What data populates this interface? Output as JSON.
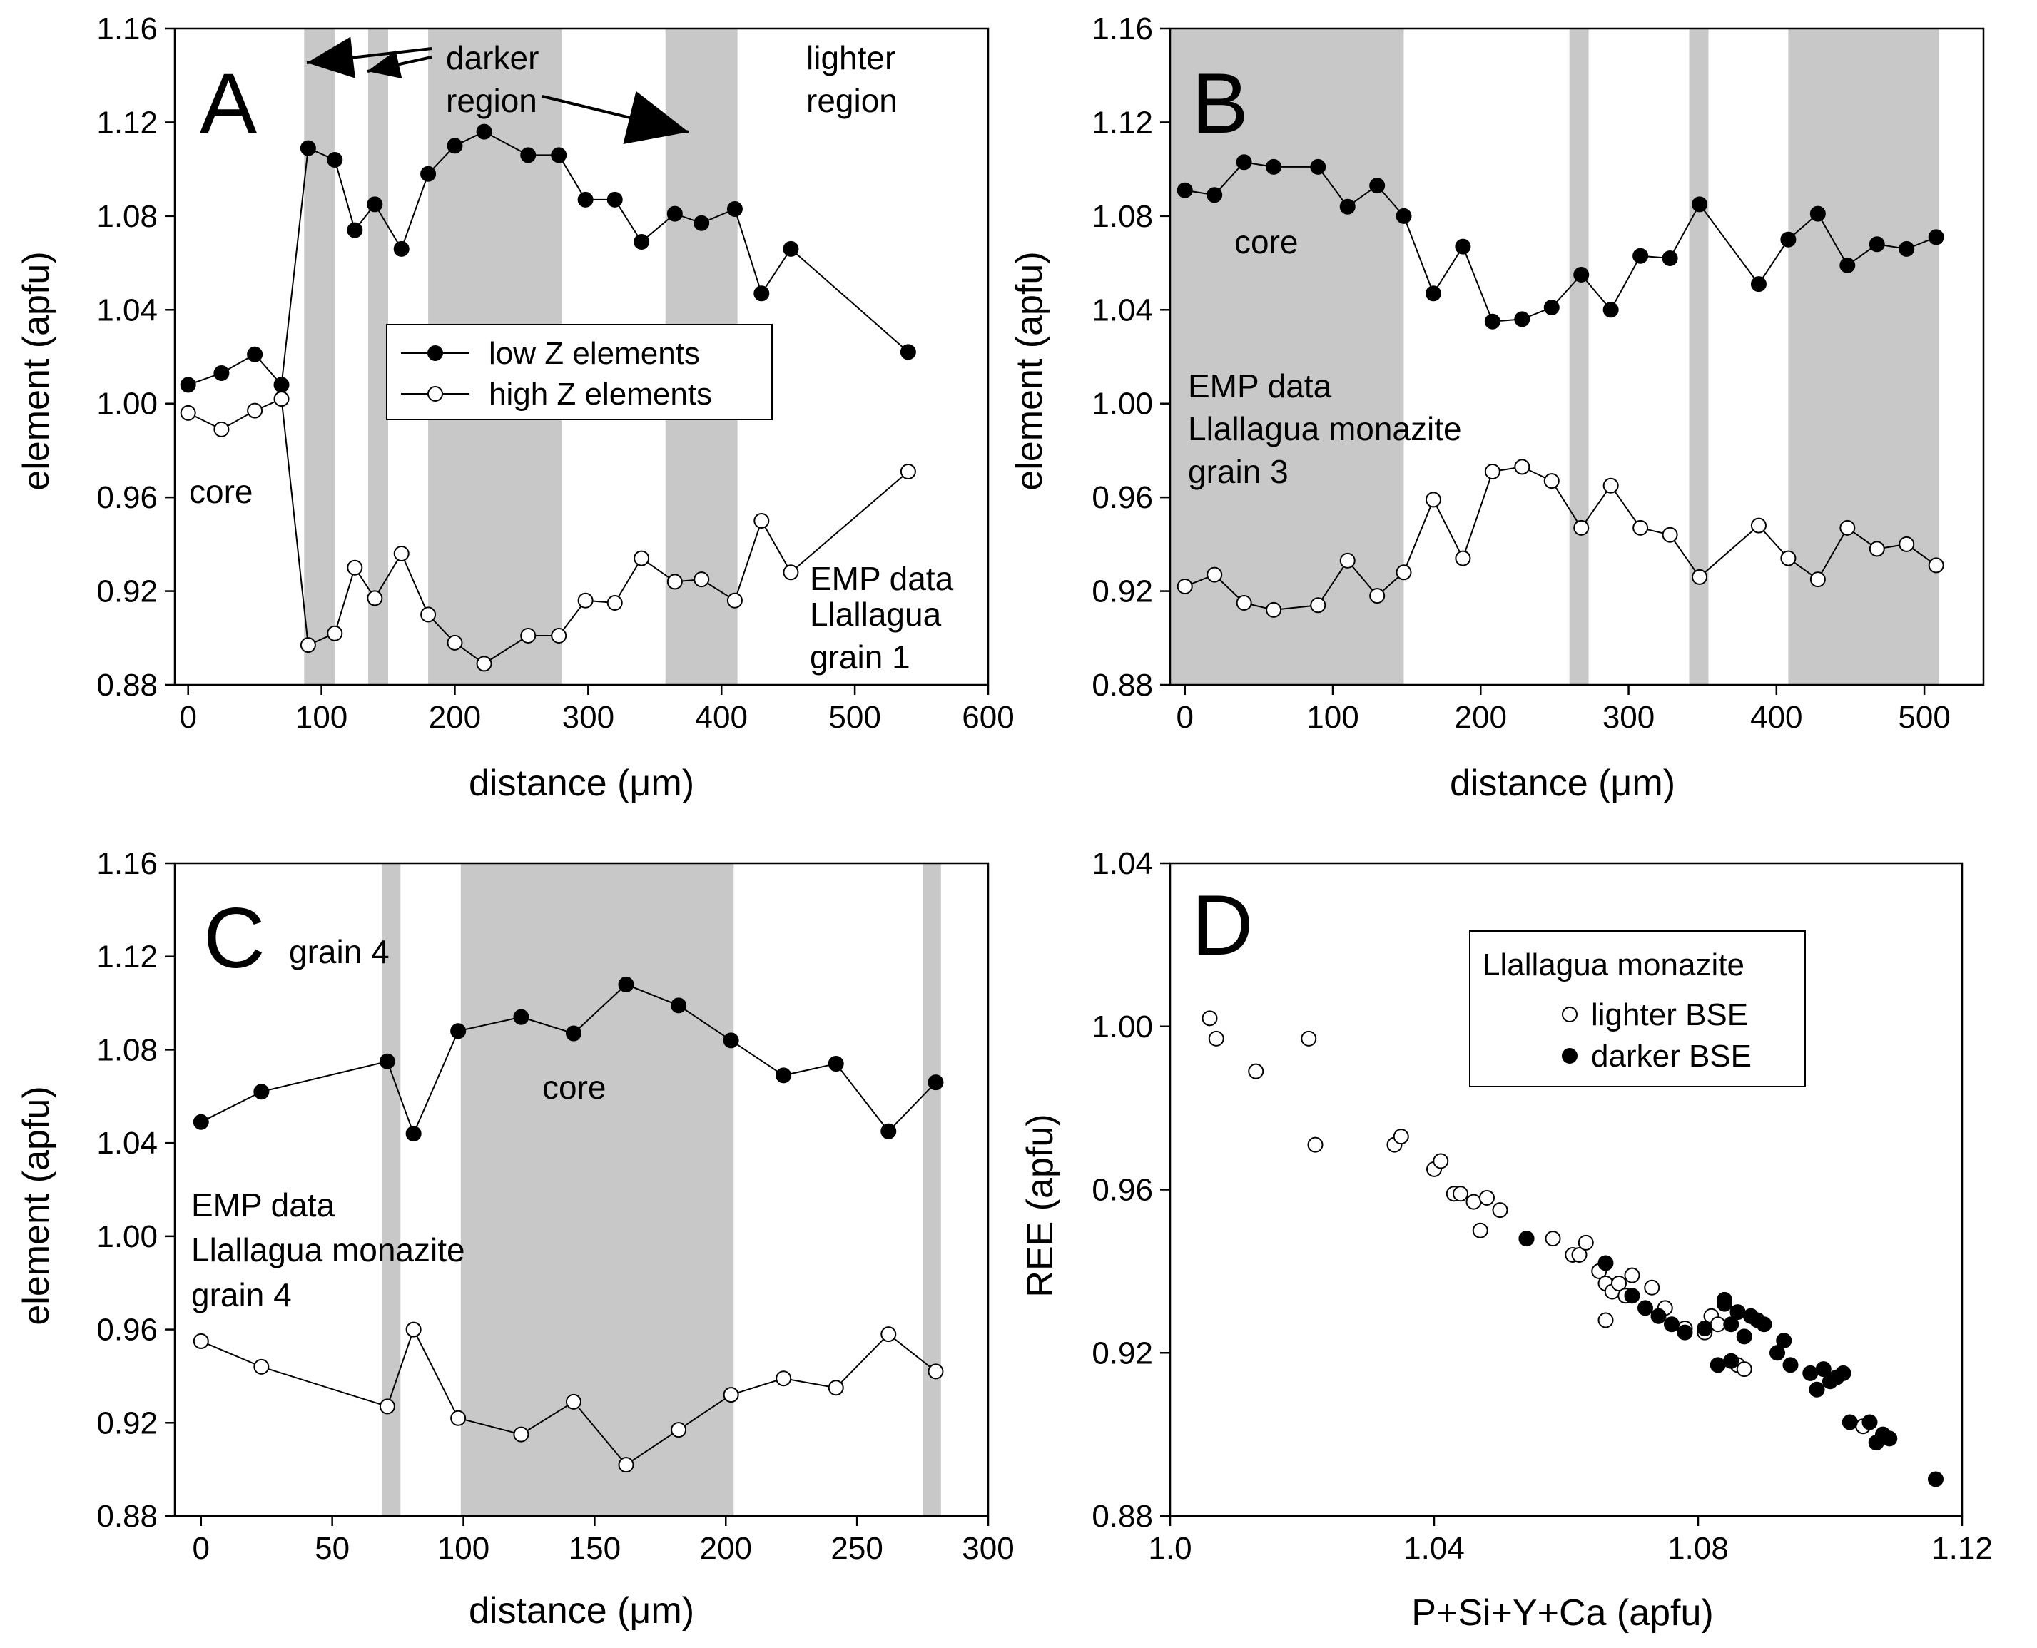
{
  "chart_data": [
    {
      "id": "A",
      "type": "line",
      "panel_label": "A",
      "xlabel": "distance (μm)",
      "ylabel": "element (apfu)",
      "xlim": [
        -10,
        600
      ],
      "ylim": [
        0.88,
        1.16
      ],
      "xticks": [
        0,
        100,
        200,
        300,
        400,
        500,
        600
      ],
      "xtick_labels": [
        "0",
        "100",
        "200",
        "300",
        "400",
        "500",
        "600"
      ],
      "yticks": [
        0.88,
        0.92,
        0.96,
        1.0,
        1.04,
        1.08,
        1.12,
        1.16
      ],
      "ytick_labels": [
        "0.88",
        "0.92",
        "0.96",
        "1.00",
        "1.04",
        "1.08",
        "1.12",
        "1.16"
      ],
      "shaded_regions": [
        [
          87,
          110
        ],
        [
          135,
          150
        ],
        [
          180,
          280
        ],
        [
          358,
          412
        ]
      ],
      "series": [
        {
          "name": "low Z elements",
          "marker": "filled",
          "x": [
            0,
            25,
            50,
            70,
            90,
            110,
            125,
            140,
            160,
            180,
            200,
            222,
            255,
            278,
            298,
            320,
            340,
            365,
            385,
            410,
            430,
            452,
            540
          ],
          "y": [
            1.008,
            1.013,
            1.021,
            1.008,
            1.109,
            1.104,
            1.074,
            1.085,
            1.066,
            1.098,
            1.11,
            1.116,
            1.106,
            1.106,
            1.087,
            1.087,
            1.069,
            1.081,
            1.077,
            1.083,
            1.047,
            1.066,
            1.022
          ]
        },
        {
          "name": "high Z elements",
          "marker": "open",
          "x": [
            0,
            25,
            50,
            70,
            90,
            110,
            125,
            140,
            160,
            180,
            200,
            222,
            255,
            278,
            298,
            320,
            340,
            365,
            385,
            410,
            430,
            452,
            540
          ],
          "y": [
            0.996,
            0.989,
            0.997,
            1.002,
            0.897,
            0.902,
            0.93,
            0.917,
            0.936,
            0.91,
            0.898,
            0.889,
            0.901,
            0.901,
            0.916,
            0.915,
            0.934,
            0.924,
            0.925,
            0.916,
            0.95,
            0.928,
            0.971
          ]
        }
      ],
      "legend": {
        "entries": [
          "low Z elements",
          "high Z elements"
        ],
        "placement": "center"
      },
      "annotations": {
        "darker_line1": "darker",
        "darker_line2": "region",
        "lighter_line1": "lighter",
        "lighter_line2": "region",
        "core": "core",
        "emp_line1": "EMP data",
        "emp_line2": "Llallagua",
        "emp_line3": "grain 1"
      }
    },
    {
      "id": "B",
      "type": "line",
      "panel_label": "B",
      "xlabel": "distance (μm)",
      "ylabel": "element (apfu)",
      "xlim": [
        -10,
        540
      ],
      "ylim": [
        0.88,
        1.16
      ],
      "xticks": [
        0,
        100,
        200,
        300,
        400,
        500
      ],
      "xtick_labels": [
        "0",
        "100",
        "200",
        "300",
        "400",
        "500"
      ],
      "yticks": [
        0.88,
        0.92,
        0.96,
        1.0,
        1.04,
        1.08,
        1.12,
        1.16
      ],
      "ytick_labels": [
        "0.88",
        "0.92",
        "0.96",
        "1.00",
        "1.04",
        "1.08",
        "1.12",
        "1.16"
      ],
      "shaded_regions": [
        [
          -10,
          148
        ],
        [
          260,
          273
        ],
        [
          341,
          354
        ],
        [
          408,
          510
        ]
      ],
      "series": [
        {
          "name": "low Z elements",
          "marker": "filled",
          "x": [
            0,
            20,
            40,
            60,
            90,
            110,
            130,
            148,
            168,
            188,
            208,
            228,
            248,
            268,
            288,
            308,
            328,
            348,
            388,
            408,
            428,
            448,
            468,
            488,
            508
          ],
          "y": [
            1.091,
            1.089,
            1.103,
            1.101,
            1.101,
            1.084,
            1.093,
            1.08,
            1.047,
            1.067,
            1.035,
            1.036,
            1.041,
            1.055,
            1.04,
            1.063,
            1.062,
            1.085,
            1.051,
            1.07,
            1.081,
            1.059,
            1.068,
            1.066,
            1.071
          ]
        },
        {
          "name": "high Z elements",
          "marker": "open",
          "x": [
            0,
            20,
            40,
            60,
            90,
            110,
            130,
            148,
            168,
            188,
            208,
            228,
            248,
            268,
            288,
            308,
            328,
            348,
            388,
            408,
            428,
            448,
            468,
            488,
            508
          ],
          "y": [
            0.922,
            0.927,
            0.915,
            0.912,
            0.914,
            0.933,
            0.918,
            0.928,
            0.959,
            0.934,
            0.971,
            0.973,
            0.967,
            0.947,
            0.965,
            0.947,
            0.944,
            0.926,
            0.948,
            0.934,
            0.925,
            0.947,
            0.938,
            0.94,
            0.931
          ]
        }
      ],
      "annotations": {
        "core": "core",
        "emp_line1": "EMP data",
        "emp_line2": "Llallagua monazite",
        "emp_line3": "grain 3"
      }
    },
    {
      "id": "C",
      "type": "line",
      "panel_label": "C",
      "xlabel": "distance (μm)",
      "ylabel": "element (apfu)",
      "xlim": [
        -10,
        300
      ],
      "ylim": [
        0.88,
        1.16
      ],
      "xticks": [
        0,
        50,
        100,
        150,
        200,
        250,
        300
      ],
      "xtick_labels": [
        "0",
        "50",
        "100",
        "150",
        "200",
        "250",
        "300"
      ],
      "yticks": [
        0.88,
        0.92,
        0.96,
        1.0,
        1.04,
        1.08,
        1.12,
        1.16
      ],
      "ytick_labels": [
        "0.88",
        "0.92",
        "0.96",
        "1.00",
        "1.04",
        "1.08",
        "1.12",
        "1.16"
      ],
      "shaded_regions": [
        [
          69,
          76
        ],
        [
          99,
          203
        ],
        [
          275,
          282
        ]
      ],
      "series": [
        {
          "name": "low Z elements",
          "marker": "filled",
          "x": [
            0,
            23,
            71,
            81,
            98,
            122,
            142,
            162,
            182,
            202,
            222,
            242,
            262,
            280
          ],
          "y": [
            1.049,
            1.062,
            1.075,
            1.044,
            1.088,
            1.094,
            1.087,
            1.108,
            1.099,
            1.084,
            1.069,
            1.074,
            1.045,
            1.066
          ]
        },
        {
          "name": "high Z elements",
          "marker": "open",
          "x": [
            0,
            23,
            71,
            81,
            98,
            122,
            142,
            162,
            182,
            202,
            222,
            242,
            262,
            280
          ],
          "y": [
            0.955,
            0.944,
            0.927,
            0.96,
            0.922,
            0.915,
            0.929,
            0.902,
            0.917,
            0.932,
            0.939,
            0.935,
            0.958,
            0.942
          ]
        }
      ],
      "annotations": {
        "grain_label": "grain 4",
        "core": "core",
        "emp_line1": "EMP data",
        "emp_line2": "Llallagua monazite",
        "emp_line3": "grain 4"
      }
    },
    {
      "id": "D",
      "type": "scatter",
      "panel_label": "D",
      "xlabel": "P+Si+Y+Ca (apfu)",
      "ylabel": "REE (apfu)",
      "xlim": [
        1.0,
        1.12
      ],
      "ylim": [
        0.88,
        1.04
      ],
      "xticks": [
        1.0,
        1.04,
        1.08,
        1.12
      ],
      "xtick_labels": [
        "1.0",
        "1.04",
        "1.08",
        "1.12"
      ],
      "yticks": [
        0.88,
        0.92,
        0.96,
        1.0,
        1.04
      ],
      "ytick_labels": [
        "0.88",
        "0.92",
        "0.96",
        "1.00",
        "1.04"
      ],
      "legend": {
        "title": "Llallagua monazite",
        "entries": [
          "lighter BSE",
          "darker BSE"
        ],
        "placement": "top-right"
      },
      "series": [
        {
          "name": "lighter BSE",
          "marker": "open",
          "x": [
            1.006,
            1.007,
            1.013,
            1.021,
            1.022,
            1.034,
            1.035,
            1.04,
            1.041,
            1.043,
            1.044,
            1.046,
            1.047,
            1.048,
            1.05,
            1.054,
            1.058,
            1.061,
            1.062,
            1.063,
            1.065,
            1.066,
            1.066,
            1.067,
            1.068,
            1.069,
            1.07,
            1.073,
            1.075,
            1.078,
            1.081,
            1.082,
            1.083,
            1.086,
            1.087,
            1.105
          ],
          "y": [
            1.002,
            0.997,
            0.989,
            0.997,
            0.971,
            0.971,
            0.973,
            0.965,
            0.967,
            0.959,
            0.959,
            0.957,
            0.95,
            0.958,
            0.955,
            0.948,
            0.948,
            0.944,
            0.944,
            0.947,
            0.94,
            0.937,
            0.928,
            0.935,
            0.937,
            0.934,
            0.939,
            0.936,
            0.931,
            0.926,
            0.925,
            0.929,
            0.927,
            0.917,
            0.916,
            0.902
          ]
        },
        {
          "name": "darker BSE",
          "marker": "filled",
          "x": [
            1.054,
            1.066,
            1.07,
            1.072,
            1.074,
            1.076,
            1.078,
            1.081,
            1.083,
            1.084,
            1.084,
            1.085,
            1.085,
            1.086,
            1.087,
            1.088,
            1.089,
            1.09,
            1.092,
            1.093,
            1.094,
            1.097,
            1.098,
            1.099,
            1.1,
            1.101,
            1.102,
            1.103,
            1.106,
            1.107,
            1.108,
            1.109,
            1.116
          ],
          "y": [
            0.948,
            0.942,
            0.934,
            0.931,
            0.929,
            0.927,
            0.925,
            0.926,
            0.917,
            0.933,
            0.932,
            0.918,
            0.927,
            0.93,
            0.924,
            0.929,
            0.928,
            0.927,
            0.92,
            0.923,
            0.917,
            0.915,
            0.911,
            0.916,
            0.913,
            0.914,
            0.915,
            0.903,
            0.903,
            0.898,
            0.9,
            0.899,
            0.889
          ]
        }
      ]
    }
  ]
}
